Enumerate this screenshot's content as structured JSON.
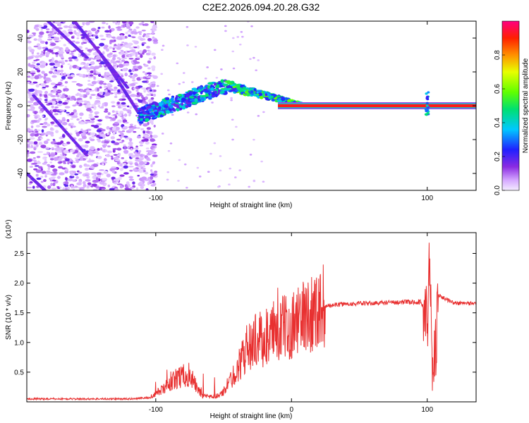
{
  "title": "C2E2.2026.094.20.28.G32",
  "chart_data": [
    {
      "type": "heatmap",
      "name": "spectrogram",
      "xlabel": "Height of straight line (km)",
      "ylabel": "Frequency (Hz)",
      "xlim": [
        -195,
        136
      ],
      "ylim": [
        -50,
        50
      ],
      "xticks": [
        -100,
        100
      ],
      "yticks": [
        -40,
        -20,
        0,
        20,
        40
      ],
      "colorbar": {
        "label": "Normalized spectral amplitude",
        "range": [
          0,
          1
        ],
        "ticks": [
          "0.0",
          "0.2",
          "0.4",
          "0.6",
          "0.8"
        ]
      },
      "features": [
        {
          "name": "noise-region",
          "x_range": [
            -195,
            -102
          ],
          "freq_range": [
            -50,
            50
          ],
          "amplitude": 0.2
        },
        {
          "name": "ramp",
          "x_range": [
            -112,
            -48
          ],
          "freq_range": [
            -6,
            12
          ],
          "amplitude": 0.4
        },
        {
          "name": "transition",
          "x_range": [
            -48,
            10
          ],
          "freq_range": [
            12,
            0
          ],
          "amplitude": 0.6
        },
        {
          "name": "steady-carrier",
          "x_range": [
            10,
            136
          ],
          "freq": 0,
          "amplitude": 0.9
        },
        {
          "name": "spike",
          "x": 100,
          "freq_range": [
            -6,
            8
          ],
          "amplitude": 0.7
        }
      ]
    },
    {
      "type": "line",
      "name": "snr",
      "xlabel": "Height of straight line (km)",
      "ylabel": "SNR (10 * v/v)",
      "yscale_label": "(x10⁴)",
      "xlim": [
        -195,
        136
      ],
      "ylim": [
        0,
        2.85
      ],
      "xticks": [
        -100,
        0,
        100
      ],
      "yticks": [
        0.5,
        1.0,
        1.5,
        2.0,
        2.5
      ],
      "series": [
        {
          "name": "SNR",
          "color": "#e83030",
          "x": [
            -195,
            -120,
            -105,
            -95,
            -85,
            -78,
            -72,
            -66,
            -60,
            -52,
            -45,
            -38,
            -32,
            -26,
            -20,
            -10,
            0,
            10,
            20,
            30,
            40,
            60,
            80,
            95,
            100,
            102,
            104,
            108,
            120,
            136
          ],
          "y": [
            0.05,
            0.05,
            0.07,
            0.2,
            0.4,
            0.45,
            0.35,
            0.1,
            0.08,
            0.12,
            0.35,
            0.65,
            0.95,
            1.05,
            1.05,
            1.2,
            1.3,
            1.45,
            1.58,
            1.63,
            1.65,
            1.66,
            1.68,
            1.68,
            1.5,
            2.2,
            0.3,
            1.8,
            1.66,
            1.66
          ]
        }
      ]
    }
  ]
}
